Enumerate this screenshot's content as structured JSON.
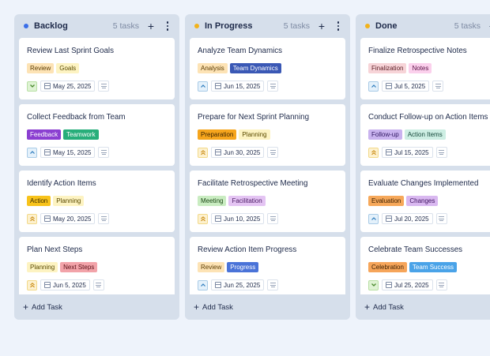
{
  "columns": [
    {
      "title": "Backlog",
      "count": "5 tasks",
      "dot_color": "#3a6ee8",
      "add_label": "Add Task",
      "cards": [
        {
          "title": "Review Last Sprint Goals",
          "tags": [
            {
              "label": "Review",
              "bg": "#fde3b5",
              "fg": "#5a3b00"
            },
            {
              "label": "Goals",
              "bg": "#fdf3c2",
              "fg": "#5a4a00"
            }
          ],
          "priority": "low",
          "priority_icon": "chevrons-down-icon",
          "date": "May 25, 2025"
        },
        {
          "title": "Collect Feedback from Team",
          "tags": [
            {
              "label": "Feedback",
              "bg": "#8b3fd1",
              "fg": "#ffffff"
            },
            {
              "label": "Teamwork",
              "bg": "#27ae7a",
              "fg": "#ffffff"
            }
          ],
          "priority": "medium",
          "priority_icon": "chevron-up-icon",
          "date": "May 15, 2025"
        },
        {
          "title": "Identify Action Items",
          "tags": [
            {
              "label": "Action",
              "bg": "#f8c31b",
              "fg": "#3a2a00"
            },
            {
              "label": "Planning",
              "bg": "#fdf3c2",
              "fg": "#5a4a00"
            }
          ],
          "priority": "high",
          "priority_icon": "chevrons-up-icon",
          "date": "May 20, 2025"
        },
        {
          "title": "Plan Next Steps",
          "tags": [
            {
              "label": "Planning",
              "bg": "#fdf3c2",
              "fg": "#5a4a00"
            },
            {
              "label": "Next Steps",
              "bg": "#f2a3a9",
              "fg": "#5a0f16"
            }
          ],
          "priority": "high",
          "priority_icon": "chevrons-up-icon",
          "date": "Jun 5, 2025"
        }
      ]
    },
    {
      "title": "In Progress",
      "count": "5 tasks",
      "dot_color": "#f2b21b",
      "add_label": "Add Task",
      "cards": [
        {
          "title": "Analyze Team Dynamics",
          "tags": [
            {
              "label": "Analysis",
              "bg": "#fde3b5",
              "fg": "#5a3b00"
            },
            {
              "label": "Team Dynamics",
              "bg": "#3a58b5",
              "fg": "#ffffff"
            }
          ],
          "priority": "medium",
          "priority_icon": "chevron-up-icon",
          "date": "Jun 15, 2025"
        },
        {
          "title": "Prepare for Next Sprint Planning",
          "tags": [
            {
              "label": "Preparation",
              "bg": "#f6a51c",
              "fg": "#3a2200"
            },
            {
              "label": "Planning",
              "bg": "#fdf3c2",
              "fg": "#5a4a00"
            }
          ],
          "priority": "high",
          "priority_icon": "chevrons-up-icon",
          "date": "Jun 30, 2025"
        },
        {
          "title": "Facilitate Retrospective Meeting",
          "tags": [
            {
              "label": "Meeting",
              "bg": "#c9ecc1",
              "fg": "#1f4a18"
            },
            {
              "label": "Facilitation",
              "bg": "#e4c4f3",
              "fg": "#4a1a63"
            }
          ],
          "priority": "high",
          "priority_icon": "chevrons-up-icon",
          "date": "Jun 10, 2025"
        },
        {
          "title": "Review Action Item Progress",
          "tags": [
            {
              "label": "Review",
              "bg": "#fde3b5",
              "fg": "#5a3b00"
            },
            {
              "label": "Progress",
              "bg": "#4a73d8",
              "fg": "#ffffff"
            }
          ],
          "priority": "medium",
          "priority_icon": "chevron-up-icon",
          "date": "Jun 25, 2025"
        }
      ]
    },
    {
      "title": "Done",
      "count": "5 tasks",
      "dot_color": "#f2b21b",
      "add_label": "Add Task",
      "cards": [
        {
          "title": "Finalize Retrospective Notes",
          "tags": [
            {
              "label": "Finalization",
              "bg": "#f7d4d8",
              "fg": "#5a1a22"
            },
            {
              "label": "Notes",
              "bg": "#fbd0ec",
              "fg": "#5a1044"
            }
          ],
          "priority": "medium",
          "priority_icon": "chevron-up-icon",
          "date": "Jul 5, 2025"
        },
        {
          "title": "Conduct Follow-up on Action Items",
          "tags": [
            {
              "label": "Follow-up",
              "bg": "#c9b3ef",
              "fg": "#2e1660"
            },
            {
              "label": "Action Items",
              "bg": "#cdeee3",
              "fg": "#15483a"
            }
          ],
          "priority": "high",
          "priority_icon": "chevrons-up-icon",
          "date": "Jul 15, 2025"
        },
        {
          "title": "Evaluate Changes Implemented",
          "tags": [
            {
              "label": "Evaluation",
              "bg": "#f6a85a",
              "fg": "#3a1e00"
            },
            {
              "label": "Changes",
              "bg": "#d9b8f0",
              "fg": "#3e1460"
            }
          ],
          "priority": "medium",
          "priority_icon": "chevron-up-icon",
          "date": "Jul 20, 2025"
        },
        {
          "title": "Celebrate Team Successes",
          "tags": [
            {
              "label": "Celebration",
              "bg": "#f6a55a",
              "fg": "#3a1e00"
            },
            {
              "label": "Team Success",
              "bg": "#4aa3e8",
              "fg": "#ffffff"
            }
          ],
          "priority": "low",
          "priority_icon": "chevrons-down-icon",
          "date": "Jul 25, 2025"
        }
      ]
    }
  ]
}
